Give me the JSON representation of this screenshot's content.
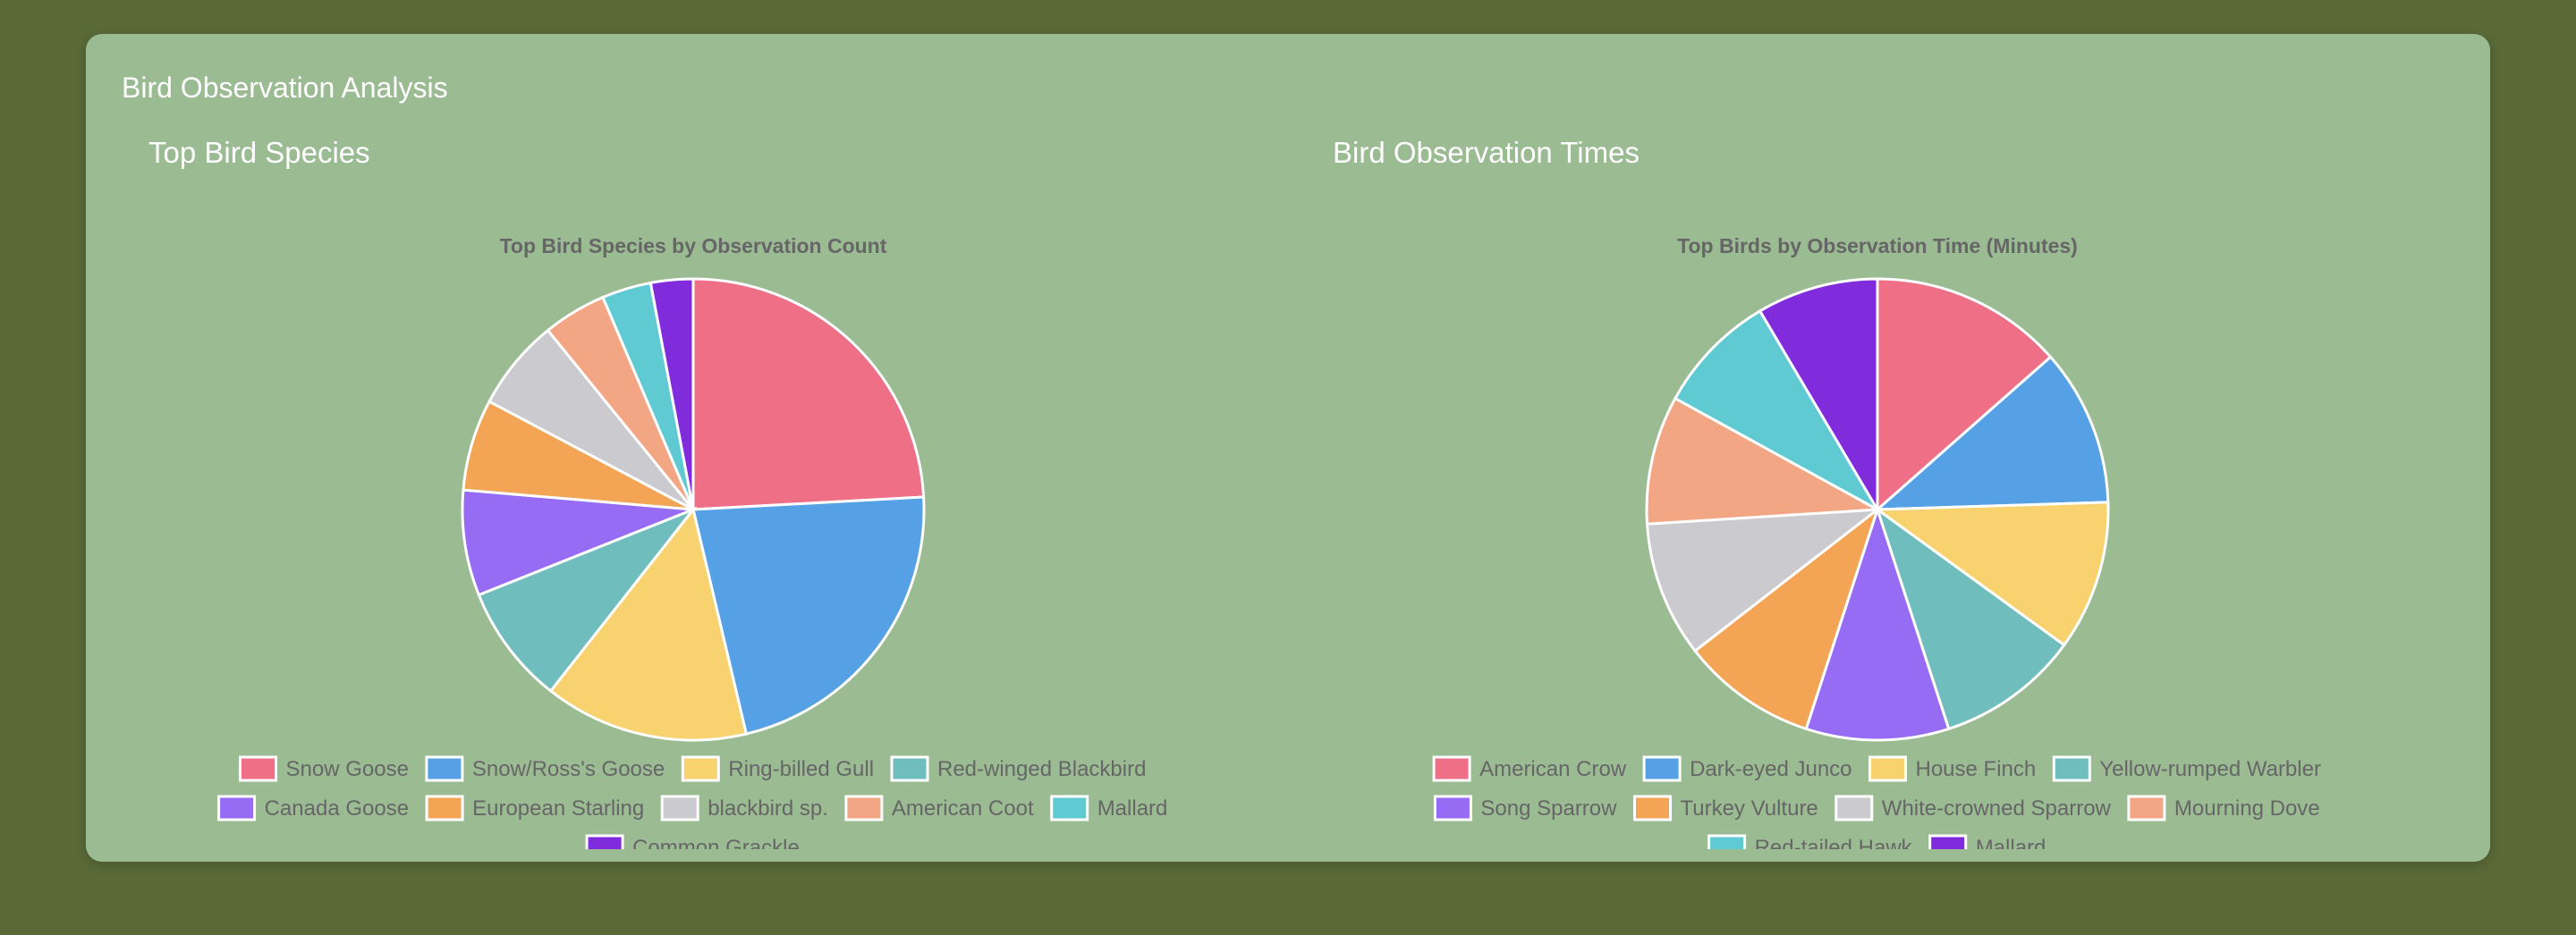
{
  "card": {
    "title": "Bird Observation Analysis"
  },
  "panels": [
    {
      "heading": "Top Bird Species"
    },
    {
      "heading": "Bird Observation Times"
    }
  ],
  "chart_data": [
    {
      "type": "pie",
      "title": "Top Bird Species by Observation Count",
      "categories": [
        "Snow Goose",
        "Snow/Ross's Goose",
        "Ring-billed Gull",
        "Red-winged Blackbird",
        "Canada Goose",
        "European Starling",
        "blackbird sp.",
        "American Coot",
        "Mallard",
        "Common Grackle"
      ],
      "values": [
        24.5,
        22.5,
        14.5,
        8.5,
        7.5,
        6.5,
        6.5,
        4.5,
        3.5,
        3.0
      ],
      "colors": [
        "#ef6f87",
        "#56a0e6",
        "#f8d26e",
        "#6fbdbd",
        "#956cf3",
        "#f3a555",
        "#cbcbcf",
        "#f3a684",
        "#60cad3",
        "#802cdc"
      ],
      "legend": "bottom"
    },
    {
      "type": "pie",
      "title": "Top Birds by Observation Time (Minutes)",
      "categories": [
        "American Crow",
        "Dark-eyed Junco",
        "House Finch",
        "Yellow-rumped Warbler",
        "Song Sparrow",
        "Turkey Vulture",
        "White-crowned Sparrow",
        "Mourning Dove",
        "Red-tailed Hawk",
        "Mallard"
      ],
      "values": [
        13.5,
        11.0,
        10.5,
        10.0,
        10.0,
        9.5,
        9.5,
        9.0,
        8.5,
        8.5
      ],
      "colors": [
        "#ef6f87",
        "#56a0e6",
        "#f8d26e",
        "#6fbdbd",
        "#956cf3",
        "#f3a555",
        "#cbcbcf",
        "#f3a684",
        "#60cad3",
        "#802cdc"
      ],
      "legend": "bottom"
    }
  ]
}
